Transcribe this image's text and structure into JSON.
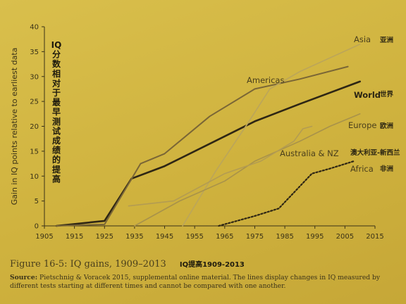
{
  "chart_data": {
    "type": "line",
    "xlabel": "",
    "ylabel": "Gain in IQ points relative to earliest data",
    "ylabel_cn": "IQ分数相对于最早测试成绩的提高",
    "xlim": [
      1905,
      2015
    ],
    "ylim": [
      0,
      40
    ],
    "x_ticks": [
      1905,
      1915,
      1925,
      1935,
      1945,
      1955,
      1965,
      1975,
      1985,
      1995,
      2005,
      2015
    ],
    "y_ticks": [
      0,
      5,
      10,
      15,
      20,
      25,
      30,
      35,
      40
    ],
    "series": [
      {
        "id": "world",
        "name": "World",
        "name_cn": "世界",
        "style": "bold",
        "color": "#2e2614",
        "points": [
          [
            1909,
            0
          ],
          [
            1925,
            1
          ],
          [
            1934,
            9.5
          ],
          [
            1945,
            12
          ],
          [
            1960,
            16.5
          ],
          [
            1975,
            21
          ],
          [
            1990,
            24.5
          ],
          [
            2010,
            29
          ]
        ]
      },
      {
        "id": "americas",
        "name": "Americas",
        "name_cn": "",
        "style": "solid",
        "color": "#7a6636",
        "points": [
          [
            1909,
            0
          ],
          [
            1925,
            0.3
          ],
          [
            1937,
            12.5
          ],
          [
            1945,
            14.5
          ],
          [
            1960,
            22
          ],
          [
            1975,
            27.5
          ],
          [
            1990,
            29.5
          ],
          [
            2006,
            32
          ]
        ]
      },
      {
        "id": "asia",
        "name": "Asia",
        "name_cn": "亚洲",
        "style": "light",
        "color": "#bba55a",
        "points": [
          [
            1951,
            0
          ],
          [
            1962,
            11
          ],
          [
            1972,
            20
          ],
          [
            1980,
            27.5
          ],
          [
            1990,
            31
          ],
          [
            2010,
            36.5
          ]
        ]
      },
      {
        "id": "europe",
        "name": "Europe",
        "name_cn": "欧洲",
        "style": "light",
        "color": "#a8924a",
        "points": [
          [
            1935,
            0
          ],
          [
            1950,
            5
          ],
          [
            1965,
            9
          ],
          [
            1975,
            13
          ],
          [
            1990,
            17
          ],
          [
            2000,
            20
          ],
          [
            2010,
            22.5
          ]
        ]
      },
      {
        "id": "australia",
        "name": "Australia & NZ",
        "name_cn": "澳大利亚-新西兰",
        "style": "light",
        "color": "#b39c52",
        "points": [
          [
            1933,
            4
          ],
          [
            1948,
            5
          ],
          [
            1965,
            10.5
          ],
          [
            1977,
            13
          ],
          [
            1988,
            17
          ],
          [
            1991,
            19.5
          ],
          [
            1994,
            20
          ]
        ]
      },
      {
        "id": "africa",
        "name": "Africa",
        "name_cn": "非洲",
        "style": "dotted",
        "color": "#2e2614",
        "points": [
          [
            1963,
            0
          ],
          [
            1975,
            2
          ],
          [
            1983,
            3.5
          ],
          [
            1994,
            10.5
          ],
          [
            2000,
            11.5
          ],
          [
            2008,
            13
          ]
        ]
      }
    ]
  },
  "caption": {
    "title": "Figure 16-5: IQ gains, 1909–2013",
    "title_cn": "IQ提高1909-2013",
    "source_label": "Source:",
    "source_text": "Pietschnig & Voracek 2015, supplemental online material. The lines display changes in IQ measured by different tests starting at different times and cannot be compared with one another."
  }
}
